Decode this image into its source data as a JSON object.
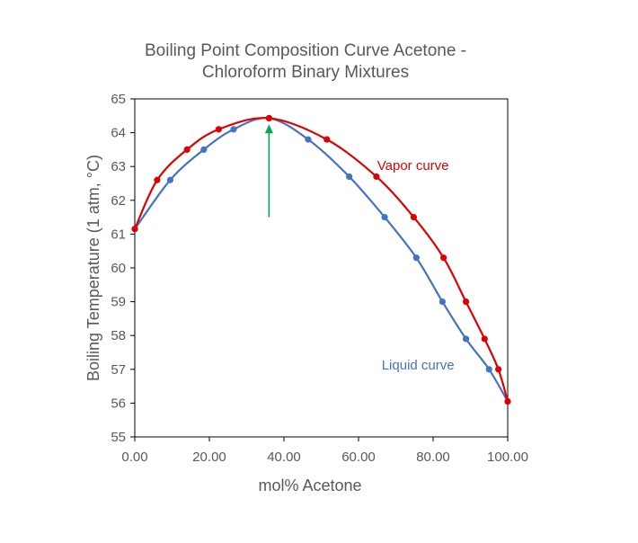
{
  "chart_data": {
    "type": "scatter",
    "title": [
      "Boiling Point Composition Curve Acetone -",
      "Chloroform Binary Mixtures"
    ],
    "xlabel": "mol% Acetone",
    "ylabel": "Boiling Temperature (1 atm, °C)",
    "xlim": [
      0,
      100
    ],
    "ylim": [
      55,
      65
    ],
    "xticks": [
      0,
      20,
      40,
      60,
      80,
      100
    ],
    "xtick_labels": [
      "0.00",
      "20.00",
      "40.00",
      "60.00",
      "80.00",
      "100.00"
    ],
    "yticks": [
      55,
      56,
      57,
      58,
      59,
      60,
      61,
      62,
      63,
      64,
      65
    ],
    "ytick_labels": [
      "55",
      "56",
      "57",
      "58",
      "59",
      "60",
      "61",
      "62",
      "63",
      "64",
      "65"
    ],
    "grid": false,
    "series": [
      {
        "name": "Vapor curve",
        "color": "#e00000",
        "points": [
          [
            0,
            61.15
          ],
          [
            6,
            62.6
          ],
          [
            14,
            63.5
          ],
          [
            22.5,
            64.1
          ],
          [
            36,
            64.43
          ],
          [
            51.5,
            63.8
          ],
          [
            64.8,
            62.7
          ],
          [
            74.8,
            61.5
          ],
          [
            82.8,
            60.3
          ],
          [
            88.8,
            59.0
          ],
          [
            93.8,
            57.9
          ],
          [
            97.5,
            57.0
          ],
          [
            100,
            56.05
          ]
        ]
      },
      {
        "name": "Liquid curve",
        "color": "#4472c4",
        "points": [
          [
            0,
            61.15
          ],
          [
            9.5,
            62.6
          ],
          [
            18.5,
            63.5
          ],
          [
            26.5,
            64.1
          ],
          [
            36,
            64.43
          ],
          [
            46.5,
            63.8
          ],
          [
            57.5,
            62.7
          ],
          [
            67,
            61.5
          ],
          [
            75.5,
            60.3
          ],
          [
            82.5,
            59.0
          ],
          [
            88.8,
            57.9
          ],
          [
            95,
            57.0
          ],
          [
            100,
            56.05
          ]
        ]
      }
    ],
    "annotations": [
      {
        "text": "Vapor curve",
        "x": 65,
        "y": 62.9,
        "color": "#e00000"
      },
      {
        "text": "Liquid curve",
        "x": 66.2,
        "y": 57.0,
        "color": "#4472c4"
      }
    ],
    "arrow": {
      "x": 36,
      "y_from": 61.5,
      "y_to": 64.25,
      "color": "#00a651"
    }
  }
}
